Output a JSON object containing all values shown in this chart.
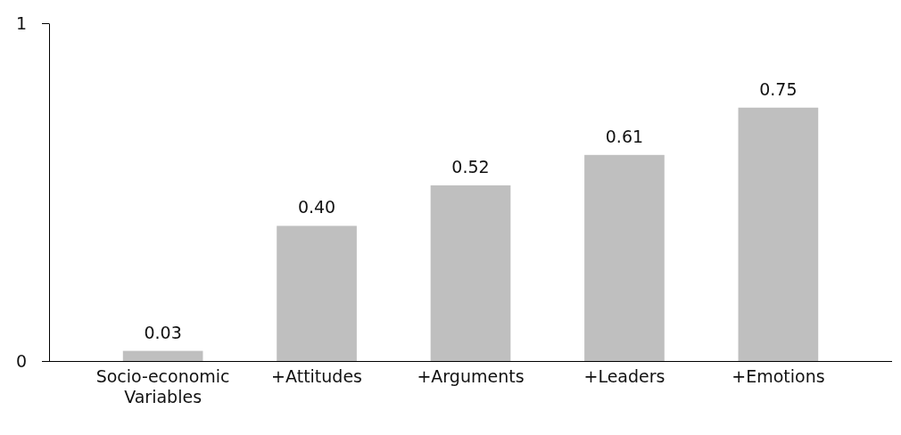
{
  "chart_data": {
    "type": "bar",
    "categories": [
      "Socio-economic Variables",
      "+Attitudes",
      "+Arguments",
      "+Leaders",
      "+Emotions"
    ],
    "values": [
      0.03,
      0.4,
      0.52,
      0.61,
      0.75
    ],
    "color": "#bfbfbf",
    "ylim": [
      0,
      1
    ],
    "yticks": [
      0,
      1
    ],
    "value_labels": [
      "0.03",
      "0.40",
      "0.52",
      "0.61",
      "0.75"
    ],
    "grid": false
  }
}
